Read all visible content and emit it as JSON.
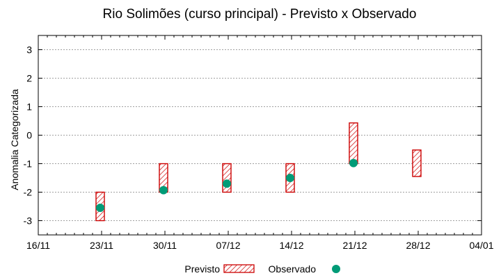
{
  "chart_data": {
    "type": "interval-scatter",
    "title": "Rio Solimões (curso principal) - Previsto x Observado",
    "xlabel": "",
    "ylabel": "Anomalia Categorizada",
    "x_ticks": [
      "16/11",
      "23/11",
      "30/11",
      "07/12",
      "14/12",
      "21/12",
      "28/12",
      "04/01"
    ],
    "xlim": [
      "16/11",
      "04/01"
    ],
    "ylim": [
      -3.5,
      3.5
    ],
    "y_ticks": [
      -3,
      -2,
      -1,
      0,
      1,
      2,
      3
    ],
    "grid": true,
    "legend_position": "bottom",
    "series": [
      {
        "name": "Previsto",
        "style": "hatched-bar",
        "color": "#cc0000",
        "points": [
          {
            "x": "23/11",
            "low": -3.0,
            "high": -2.0
          },
          {
            "x": "30/11",
            "low": -2.0,
            "high": -1.0
          },
          {
            "x": "07/12",
            "low": -2.0,
            "high": -1.0
          },
          {
            "x": "14/12",
            "low": -2.0,
            "high": -1.0
          },
          {
            "x": "21/12",
            "low": -1.0,
            "high": 0.43
          },
          {
            "x": "28/12",
            "low": -1.45,
            "high": -0.52
          }
        ]
      },
      {
        "name": "Observado",
        "style": "marker",
        "color": "#009b77",
        "points": [
          {
            "x": "23/11",
            "y": -2.55
          },
          {
            "x": "30/11",
            "y": -1.93
          },
          {
            "x": "07/12",
            "y": -1.7
          },
          {
            "x": "14/12",
            "y": -1.5
          },
          {
            "x": "21/12",
            "y": -0.98
          }
        ]
      }
    ]
  }
}
